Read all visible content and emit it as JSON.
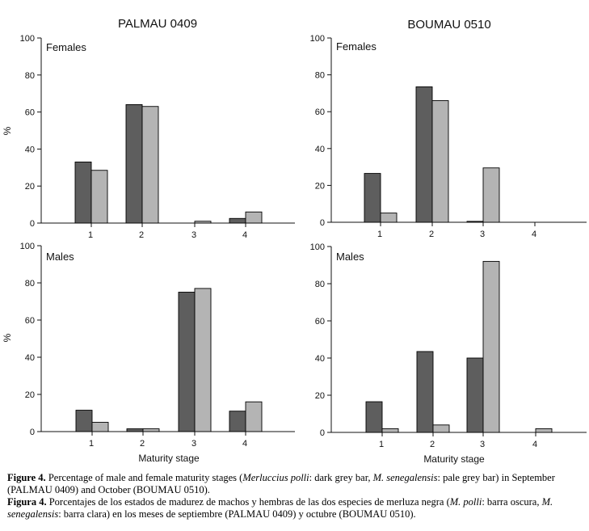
{
  "chart_data": [
    {
      "type": "bar",
      "title": "PALMAU 0409",
      "panel_label": "Females",
      "xlabel": "",
      "ylabel": "%",
      "ylim": [
        0,
        100
      ],
      "yticks": [
        0,
        20,
        40,
        60,
        80,
        100
      ],
      "categories": [
        "1",
        "2",
        "3",
        "4"
      ],
      "series": [
        {
          "name": "M. polli",
          "values": [
            33,
            64,
            0,
            2.5
          ]
        },
        {
          "name": "M. senegalensis",
          "values": [
            28.5,
            63,
            1,
            6
          ]
        }
      ]
    },
    {
      "type": "bar",
      "title": "BOUMAU 0510",
      "panel_label": "Females",
      "xlabel": "",
      "ylabel": "",
      "ylim": [
        0,
        100
      ],
      "yticks": [
        0,
        20,
        40,
        60,
        80,
        100
      ],
      "categories": [
        "1",
        "2",
        "3",
        "4"
      ],
      "series": [
        {
          "name": "M. polli",
          "values": [
            26.5,
            73.5,
            0.5,
            0
          ]
        },
        {
          "name": "M. senegalensis",
          "values": [
            5,
            66,
            29.5,
            0
          ]
        }
      ]
    },
    {
      "type": "bar",
      "title": "",
      "panel_label": "Males",
      "xlabel": "Maturity stage",
      "ylabel": "%",
      "ylim": [
        0,
        100
      ],
      "yticks": [
        0,
        20,
        40,
        60,
        80,
        100
      ],
      "categories": [
        "1",
        "2",
        "3",
        "4"
      ],
      "series": [
        {
          "name": "M. polli",
          "values": [
            11.5,
            1.5,
            75,
            11
          ]
        },
        {
          "name": "M. senegalensis",
          "values": [
            5,
            1.5,
            77,
            16
          ]
        }
      ]
    },
    {
      "type": "bar",
      "title": "",
      "panel_label": "Males",
      "xlabel": "Maturity stage",
      "ylabel": "",
      "ylim": [
        0,
        100
      ],
      "yticks": [
        0,
        20,
        40,
        60,
        80,
        100
      ],
      "categories": [
        "1",
        "2",
        "3",
        "4"
      ],
      "series": [
        {
          "name": "M. polli",
          "values": [
            16.5,
            43.5,
            40,
            0
          ]
        },
        {
          "name": "M. senegalensis",
          "values": [
            2,
            4,
            92,
            2
          ]
        }
      ]
    }
  ],
  "colors": {
    "dark_bar": "#5e5e5e",
    "pale_bar": "#b4b4b4",
    "axis": "#111111"
  },
  "caption": {
    "en": {
      "label": "Figure 4.",
      "t1": " Percentage of male and female maturity stages (",
      "sp1": "Merluccius polli",
      "t2": ": dark grey bar, ",
      "sp2": "M. senegalensis",
      "t3": ": pale grey bar) in September (PALMAU 0409) and October (BOUMAU 0510)."
    },
    "es": {
      "label": "Figura 4.",
      "t1": " Porcentajes de los estados de madurez de machos y hembras de las dos especies de merluza negra (",
      "sp1": "M. polli",
      "t2": ": barra oscura, ",
      "sp2": "M. senegalensis",
      "t3": ": barra clara) en los meses de septiembre (PALMAU 0409) y octubre (BOUMAU 0510)."
    }
  }
}
